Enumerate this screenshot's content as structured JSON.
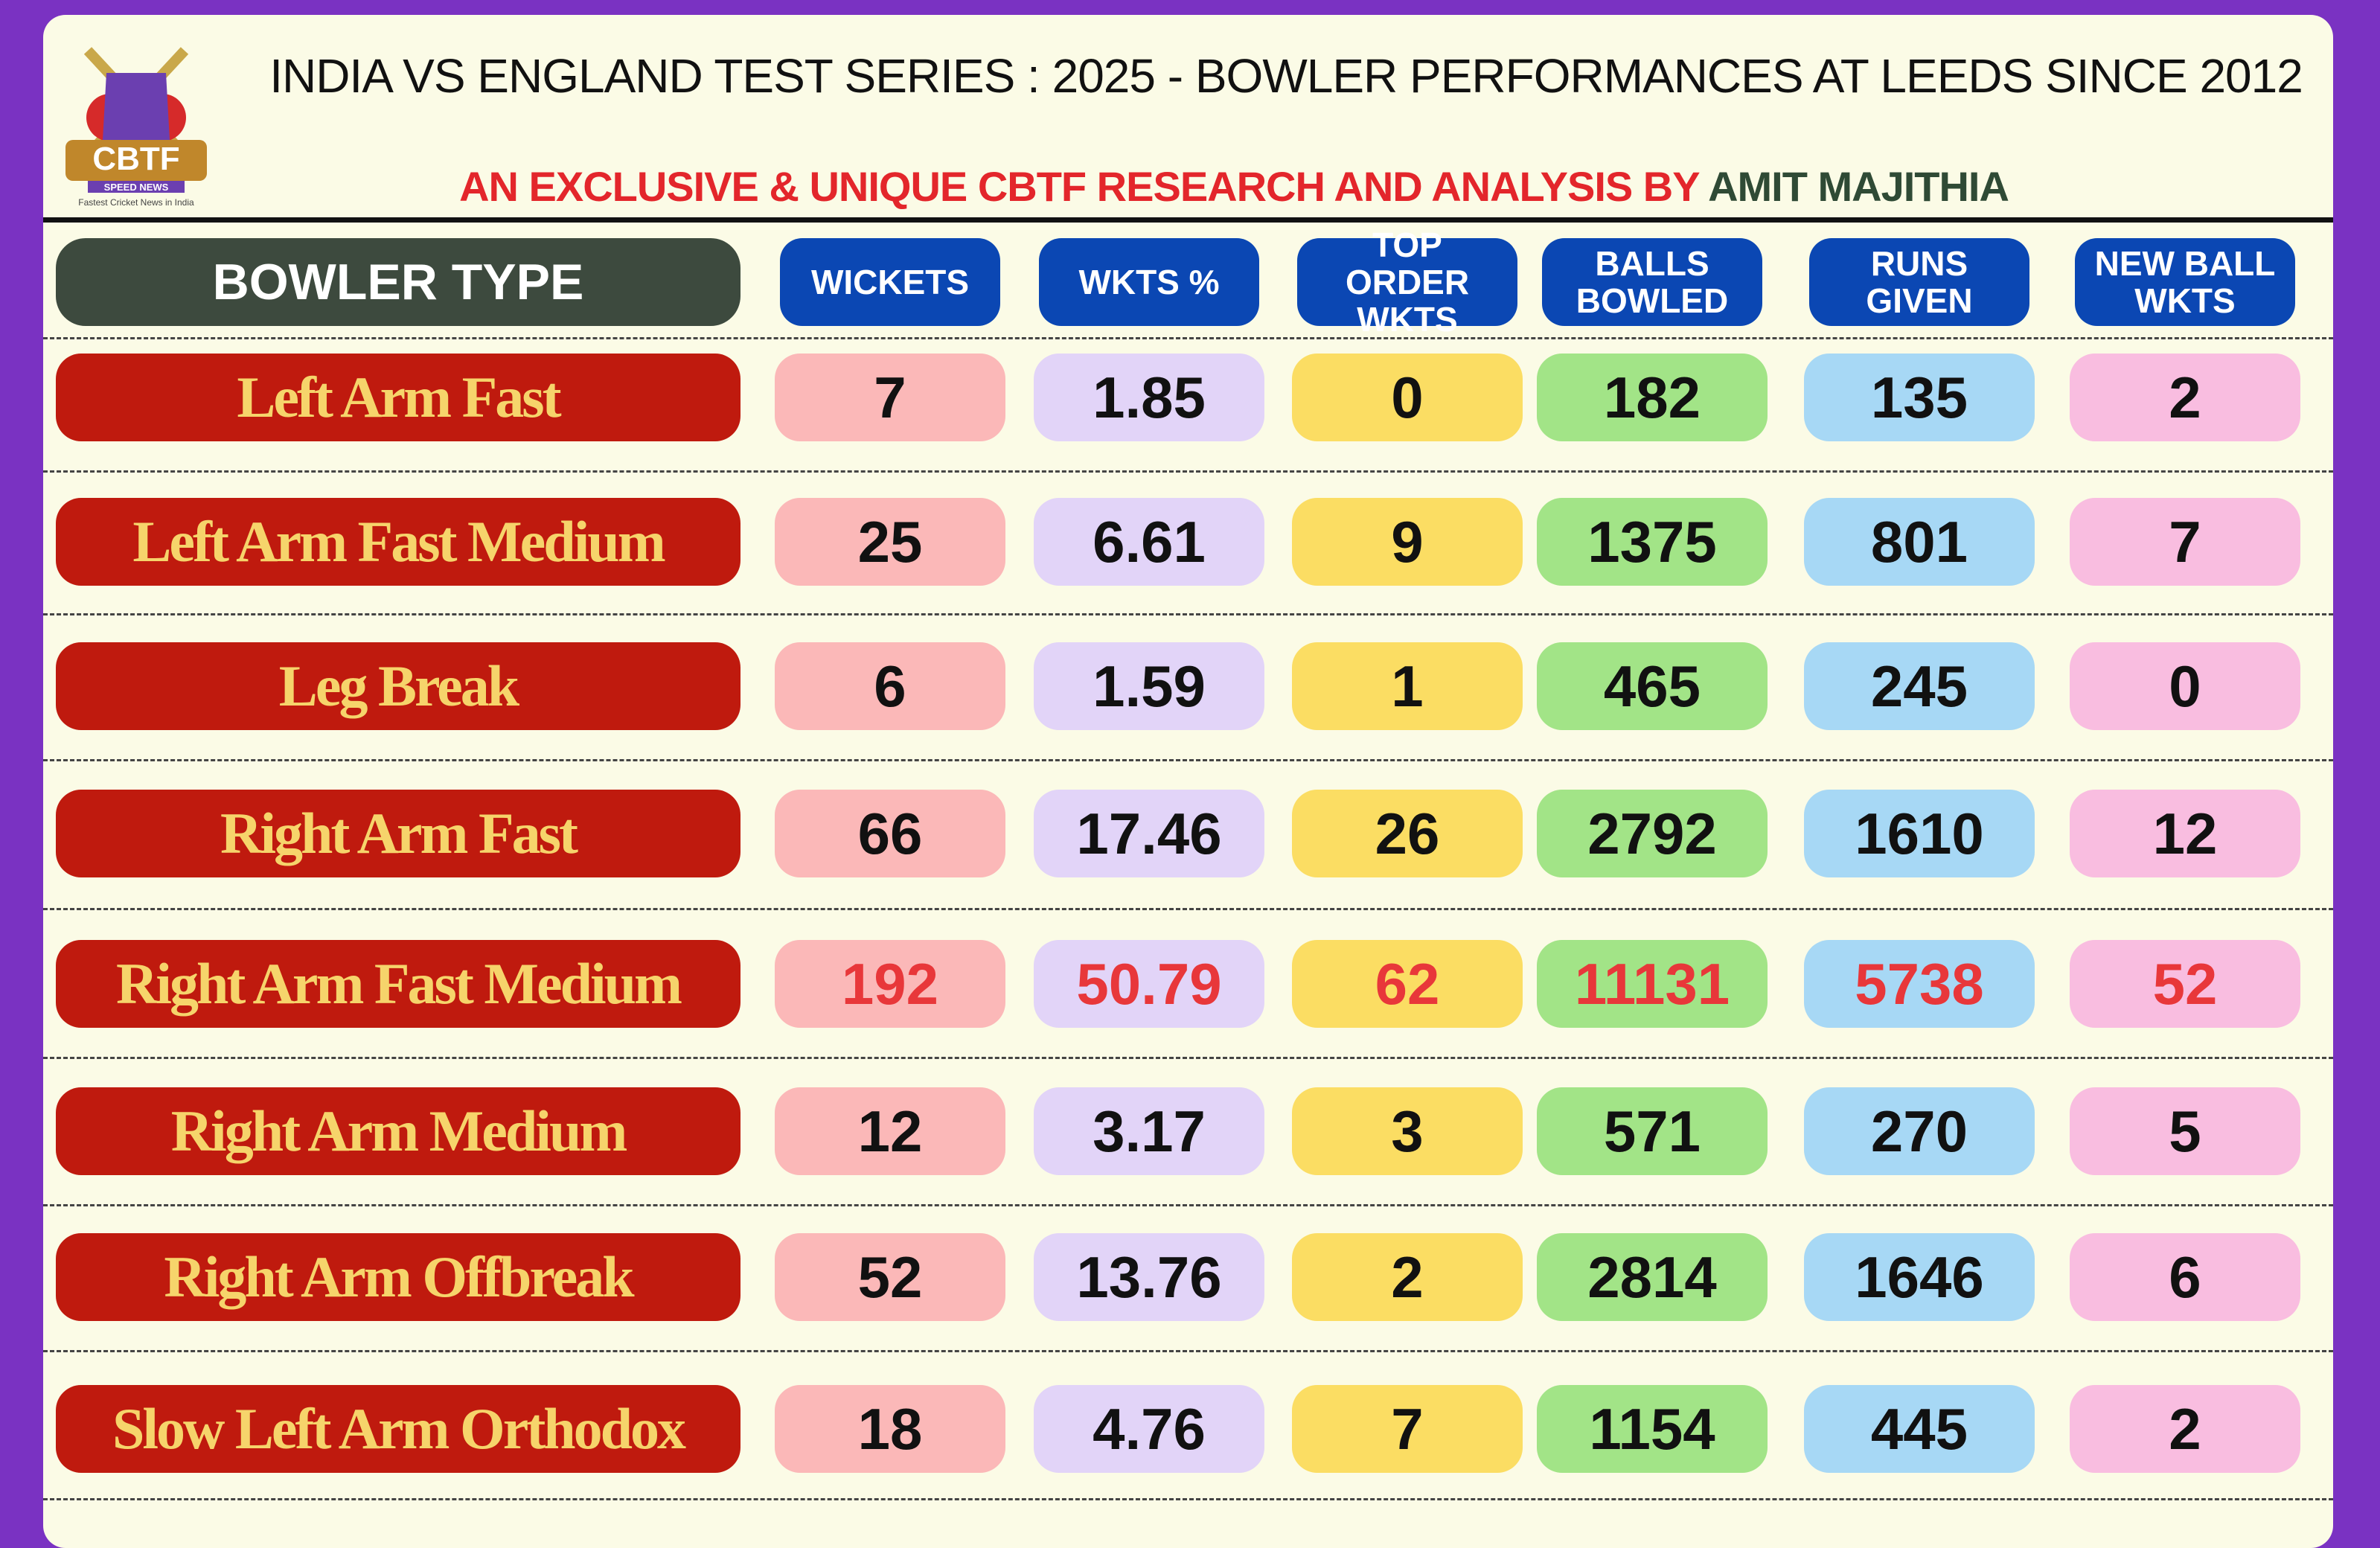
{
  "header": {
    "title": "INDIA VS ENGLAND TEST SERIES : 2025 - BOWLER PERFORMANCES AT LEEDS SINCE 2012",
    "subtitle": "AN EXCLUSIVE & UNIQUE CBTF RESEARCH AND ANALYSIS BY",
    "author": "AMIT MAJITHIA"
  },
  "logo": {
    "name": "CBTF",
    "tagline": "SPEED NEWS",
    "motto": "Fastest Cricket News in India"
  },
  "table": {
    "columns": [
      "BOWLER TYPE",
      "WICKETS",
      "WKTS %",
      "TOP ORDER WKTS",
      "BALLS BOWLED",
      "RUNS GIVEN",
      "NEW BALL WKTS"
    ],
    "rows": [
      [
        "Left Arm Fast",
        7,
        1.85,
        0,
        182,
        135,
        2
      ],
      [
        "Left Arm Fast Medium",
        25,
        6.61,
        9,
        1375,
        801,
        7
      ],
      [
        "Leg Break",
        6,
        1.59,
        1,
        465,
        245,
        0
      ],
      [
        "Right Arm Fast",
        66,
        17.46,
        26,
        2792,
        1610,
        12
      ],
      [
        "Right Arm Fast Medium",
        192,
        50.79,
        62,
        11131,
        5738,
        52
      ],
      [
        "Right Arm Medium",
        12,
        3.17,
        3,
        571,
        270,
        5
      ],
      [
        "Right Arm Offbreak",
        52,
        13.76,
        2,
        2814,
        1646,
        6
      ],
      [
        "Slow Left Arm Orthodox",
        18,
        4.76,
        7,
        1154,
        445,
        2
      ]
    ]
  }
}
